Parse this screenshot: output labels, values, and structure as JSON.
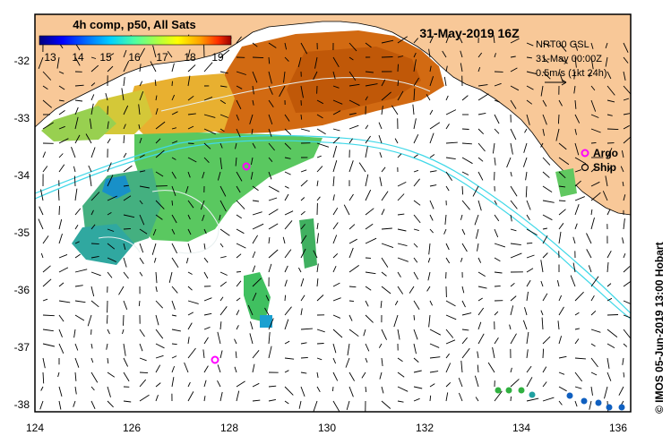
{
  "map": {
    "date_title": "31-May-2019 16Z",
    "colorbar": {
      "title": "4h comp, p50, All Sats",
      "ticks": [
        "13",
        "14",
        "15",
        "16",
        "17",
        "18",
        "19"
      ],
      "colors": [
        "#00007f",
        "#0000ff",
        "#0060ff",
        "#00c8ff",
        "#40ffb8",
        "#a0ff58",
        "#ffff00",
        "#ffa000",
        "#ff3000",
        "#9a0000"
      ]
    },
    "current_info": {
      "line1": "NRT00 GSL",
      "line2": "31-May 00:00Z",
      "line3": "0.5m/s (1kt 24h)"
    },
    "legend": {
      "argo": "Argo",
      "ship": "Ship",
      "argo_color": "#ff00ff"
    },
    "x_ticks": [
      "124",
      "126",
      "128",
      "130",
      "132",
      "134",
      "136"
    ],
    "y_ticks": [
      "-32",
      "-33",
      "-34",
      "-35",
      "-36",
      "-37",
      "-38"
    ],
    "credit": "© IMOS 05-Jun-2019 13:00 Hobart",
    "colors": {
      "land": "#f8c898",
      "frame": "#000000",
      "contour": "#40d8e8"
    }
  }
}
